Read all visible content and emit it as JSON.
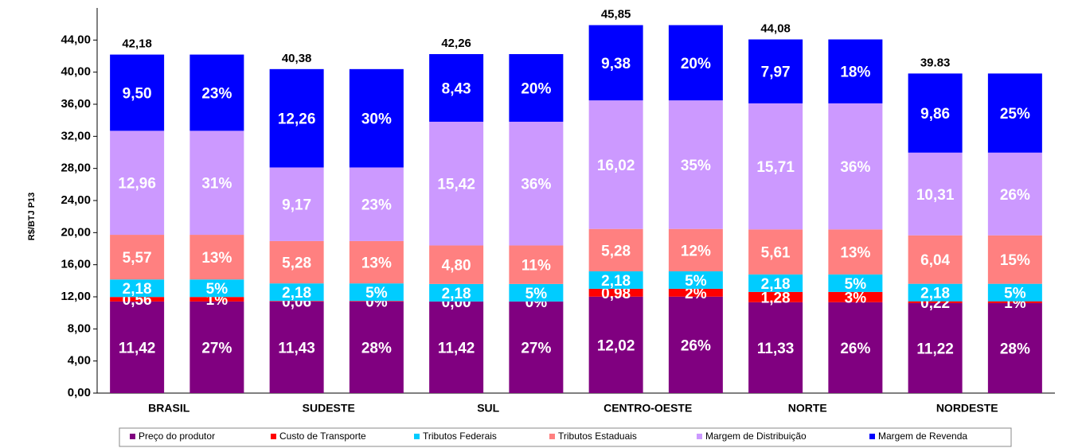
{
  "chart_data": {
    "type": "stacked-bar-pair",
    "y_label": "R$/BTJ P13",
    "categories": [
      "BRASIL",
      "SUDESTE",
      "SUL",
      "CENTRO-OESTE",
      "NORTE",
      "NORDESTE"
    ],
    "ylim": [
      0,
      48
    ],
    "yticks": [
      {
        "value": 0,
        "label": "0,00"
      },
      {
        "value": 4,
        "label": "4,00"
      },
      {
        "value": 8,
        "label": "8,00"
      },
      {
        "value": 12,
        "label": "12,00"
      },
      {
        "value": 16,
        "label": "16,00"
      },
      {
        "value": 20,
        "label": "20,00"
      },
      {
        "value": 24,
        "label": "24,00"
      },
      {
        "value": 28,
        "label": "28,00"
      },
      {
        "value": 32,
        "label": "32,00"
      },
      {
        "value": 36,
        "label": "36,00"
      },
      {
        "value": 40,
        "label": "40,00"
      },
      {
        "value": 44,
        "label": "44,00"
      }
    ],
    "totals": [
      42.18,
      40.38,
      42.26,
      45.85,
      44.08,
      39.83
    ],
    "total_labels": [
      "42,18",
      "40,38",
      "42,26",
      "45,85",
      "44,08",
      "39.83"
    ],
    "series": [
      {
        "name": "Preço do produtor",
        "color": "#800080",
        "values": [
          11.42,
          11.43,
          11.42,
          12.02,
          11.33,
          11.22
        ],
        "value_labels": [
          "11,42",
          "11,43",
          "11,42",
          "12,02",
          "11,33",
          "11,22"
        ],
        "shares": [
          27,
          28,
          27,
          26,
          26,
          28
        ],
        "share_labels": [
          "27%",
          "28%",
          "27%",
          "26%",
          "26%",
          "28%"
        ]
      },
      {
        "name": "Custo de Transporte",
        "color": "#ff0000",
        "values": [
          0.56,
          0.06,
          0.0,
          0.98,
          1.28,
          0.22
        ],
        "value_labels": [
          "0,56",
          "0,06",
          "0,00",
          "0,98",
          "1,28",
          "0,22"
        ],
        "shares": [
          1,
          0,
          0,
          2,
          3,
          1
        ],
        "share_labels": [
          "1%",
          "0%",
          "0%",
          "2%",
          "3%",
          "1%"
        ]
      },
      {
        "name": "Tributos Federais",
        "color": "#00ccff",
        "values": [
          2.18,
          2.18,
          2.18,
          2.18,
          2.18,
          2.18
        ],
        "value_labels": [
          "2,18",
          "2,18",
          "2,18",
          "2,18",
          "2,18",
          "2,18"
        ],
        "shares": [
          5,
          5,
          5,
          5,
          5,
          5
        ],
        "share_labels": [
          "5%",
          "5%",
          "5%",
          "5%",
          "5%",
          "5%"
        ]
      },
      {
        "name": "Tributos Estaduais",
        "color": "#ff8080",
        "values": [
          5.57,
          5.28,
          4.8,
          5.28,
          5.61,
          6.04
        ],
        "value_labels": [
          "5,57",
          "5,28",
          "4,80",
          "5,28",
          "5,61",
          "6,04"
        ],
        "shares": [
          13,
          13,
          11,
          12,
          13,
          15
        ],
        "share_labels": [
          "13%",
          "13%",
          "11%",
          "12%",
          "13%",
          "15%"
        ]
      },
      {
        "name": "Margem de Distribuição",
        "color": "#cc99ff",
        "values": [
          12.96,
          9.17,
          15.42,
          16.02,
          15.71,
          10.31
        ],
        "value_labels": [
          "12,96",
          "9,17",
          "15,42",
          "16,02",
          "15,71",
          "10,31"
        ],
        "shares": [
          31,
          23,
          36,
          35,
          36,
          26
        ],
        "share_labels": [
          "31%",
          "23%",
          "36%",
          "35%",
          "36%",
          "26%"
        ]
      },
      {
        "name": "Margem de Revenda",
        "color": "#0000ff",
        "values": [
          9.5,
          12.26,
          8.43,
          9.38,
          7.97,
          9.86
        ],
        "value_labels": [
          "9,50",
          "12,26",
          "8,43",
          "9,38",
          "7,97",
          "9,86"
        ],
        "shares": [
          23,
          30,
          20,
          20,
          18,
          25
        ],
        "share_labels": [
          "23%",
          "30%",
          "20%",
          "20%",
          "18%",
          "25%"
        ]
      }
    ]
  }
}
